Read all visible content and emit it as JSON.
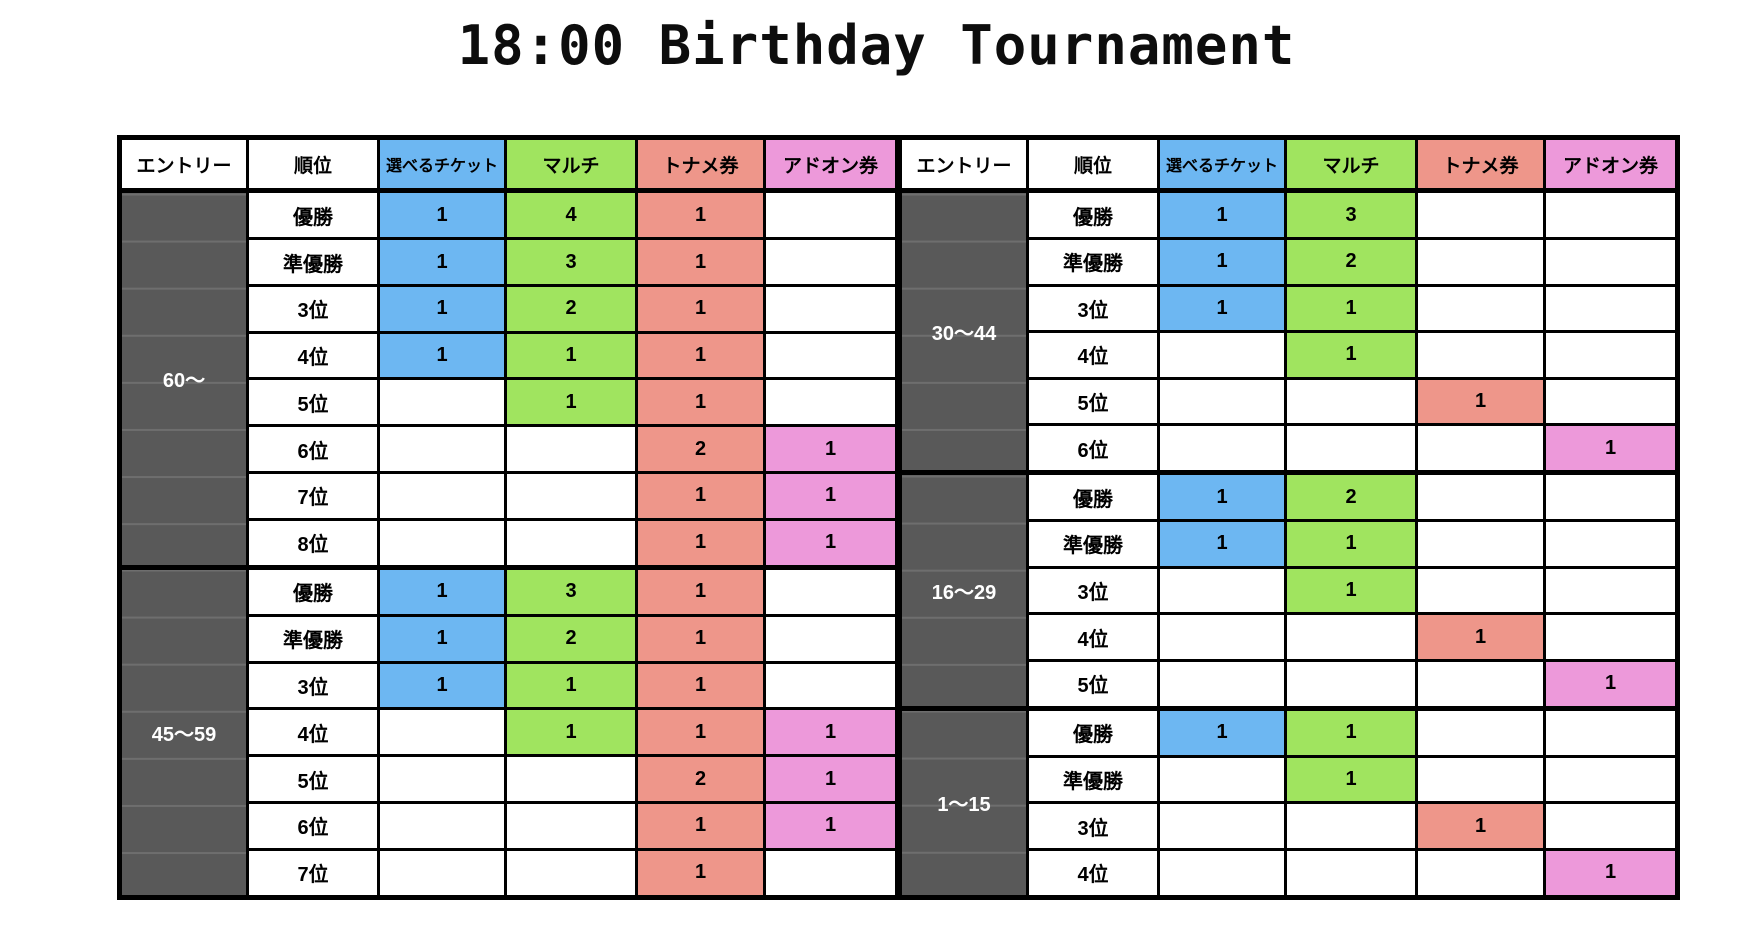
{
  "title": "18:00 Birthday Tournament",
  "colors": {
    "ticket_blue": "#6DB7F2",
    "multi_green": "#A0E45F",
    "toname_salmon": "#EE968A",
    "addon_pink": "#ED99DA",
    "entry_gray": "#595959",
    "border_black": "#000000"
  },
  "table": {
    "column_headers": {
      "entry": "エントリー",
      "rank": "順位",
      "ticket": "選べるチケット",
      "multi": "マルチ",
      "toname": "トナメ券",
      "addon": "アドオン券"
    },
    "halves": [
      {
        "id": "left",
        "sections": [
          {
            "entry_range": "60〜",
            "rows": [
              {
                "rank": "優勝",
                "ticket": "1",
                "multi": "4",
                "toname": "1",
                "addon": ""
              },
              {
                "rank": "準優勝",
                "ticket": "1",
                "multi": "3",
                "toname": "1",
                "addon": ""
              },
              {
                "rank": "3位",
                "ticket": "1",
                "multi": "2",
                "toname": "1",
                "addon": ""
              },
              {
                "rank": "4位",
                "ticket": "1",
                "multi": "1",
                "toname": "1",
                "addon": ""
              },
              {
                "rank": "5位",
                "ticket": "",
                "multi": "1",
                "toname": "1",
                "addon": ""
              },
              {
                "rank": "6位",
                "ticket": "",
                "multi": "",
                "toname": "2",
                "addon": "1"
              },
              {
                "rank": "7位",
                "ticket": "",
                "multi": "",
                "toname": "1",
                "addon": "1"
              },
              {
                "rank": "8位",
                "ticket": "",
                "multi": "",
                "toname": "1",
                "addon": "1"
              }
            ]
          },
          {
            "entry_range": "45〜59",
            "rows": [
              {
                "rank": "優勝",
                "ticket": "1",
                "multi": "3",
                "toname": "1",
                "addon": ""
              },
              {
                "rank": "準優勝",
                "ticket": "1",
                "multi": "2",
                "toname": "1",
                "addon": ""
              },
              {
                "rank": "3位",
                "ticket": "1",
                "multi": "1",
                "toname": "1",
                "addon": ""
              },
              {
                "rank": "4位",
                "ticket": "",
                "multi": "1",
                "toname": "1",
                "addon": "1"
              },
              {
                "rank": "5位",
                "ticket": "",
                "multi": "",
                "toname": "2",
                "addon": "1"
              },
              {
                "rank": "6位",
                "ticket": "",
                "multi": "",
                "toname": "1",
                "addon": "1"
              },
              {
                "rank": "7位",
                "ticket": "",
                "multi": "",
                "toname": "1",
                "addon": ""
              }
            ]
          }
        ]
      },
      {
        "id": "right",
        "sections": [
          {
            "entry_range": "30〜44",
            "rows": [
              {
                "rank": "優勝",
                "ticket": "1",
                "multi": "3",
                "toname": "",
                "addon": ""
              },
              {
                "rank": "準優勝",
                "ticket": "1",
                "multi": "2",
                "toname": "",
                "addon": ""
              },
              {
                "rank": "3位",
                "ticket": "1",
                "multi": "1",
                "toname": "",
                "addon": ""
              },
              {
                "rank": "4位",
                "ticket": "",
                "multi": "1",
                "toname": "",
                "addon": ""
              },
              {
                "rank": "5位",
                "ticket": "",
                "multi": "",
                "toname": "1",
                "addon": ""
              },
              {
                "rank": "6位",
                "ticket": "",
                "multi": "",
                "toname": "",
                "addon": "1"
              }
            ]
          },
          {
            "entry_range": "16〜29",
            "rows": [
              {
                "rank": "優勝",
                "ticket": "1",
                "multi": "2",
                "toname": "",
                "addon": ""
              },
              {
                "rank": "準優勝",
                "ticket": "1",
                "multi": "1",
                "toname": "",
                "addon": ""
              },
              {
                "rank": "3位",
                "ticket": "",
                "multi": "1",
                "toname": "",
                "addon": ""
              },
              {
                "rank": "4位",
                "ticket": "",
                "multi": "",
                "toname": "1",
                "addon": ""
              },
              {
                "rank": "5位",
                "ticket": "",
                "multi": "",
                "toname": "",
                "addon": "1"
              }
            ]
          },
          {
            "entry_range": "1〜15",
            "rows": [
              {
                "rank": "優勝",
                "ticket": "1",
                "multi": "1",
                "toname": "",
                "addon": ""
              },
              {
                "rank": "準優勝",
                "ticket": "",
                "multi": "1",
                "toname": "",
                "addon": ""
              },
              {
                "rank": "3位",
                "ticket": "",
                "multi": "",
                "toname": "1",
                "addon": ""
              },
              {
                "rank": "4位",
                "ticket": "",
                "multi": "",
                "toname": "",
                "addon": "1"
              }
            ]
          }
        ]
      }
    ]
  }
}
